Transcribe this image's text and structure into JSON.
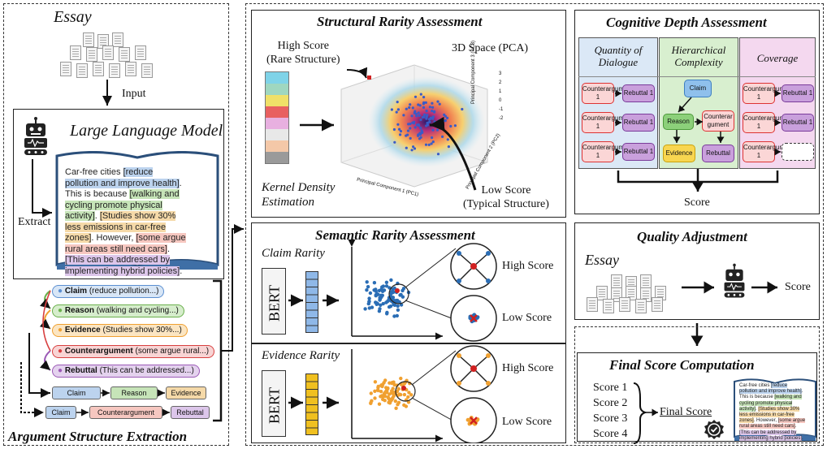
{
  "left": {
    "essay_label": "Essay",
    "input_label": "Input",
    "llm_title": "Large Language Model",
    "extract_label": "Extract",
    "book_text": {
      "t1": "Car-free cities ",
      "h1": "[reduce pollution and improve health]",
      "t2": ". This is because ",
      "h2": "[walking and cycling promote physical activity]",
      "t3": ". ",
      "h3": "[Studies show 30% less emissions in car-free zones]",
      "t4": ". However, ",
      "h4": "[some argue rural areas still need cars]",
      "t5": ". ",
      "h5": "[This can be addressed by implementing hybrid policies]",
      "t6": "."
    },
    "components": [
      {
        "key": "Claim",
        "rest": " (reduce pollution...)"
      },
      {
        "key": "Reason",
        "rest": " (walking and cycling...)"
      },
      {
        "key": "Evidence",
        "rest": " (Studies show 30%...)"
      },
      {
        "key": "Counterargument",
        "rest": " (some argue rural...)"
      },
      {
        "key": "Rebuttal",
        "rest": " (This can be addressed...)"
      }
    ],
    "chain1": [
      "Claim",
      "Reason",
      "Evidence"
    ],
    "chain2": [
      "Claim",
      "Counterargument",
      "Rebuttal"
    ],
    "section_title": "Argument Structure Extraction"
  },
  "structural": {
    "title": "Structural Rarity Assessment",
    "high_score": "High Score",
    "high_sub": "(Rare Structure)",
    "space_label": "3D Space (PCA)",
    "kde_line1": "Kernel Density",
    "kde_line2": "Estimation",
    "low_score": "Low Score",
    "low_sub": "(Typical Structure)",
    "pc1": "Principal Component 1 (PC1)",
    "pc2": "Principal Component 2 (PC2)",
    "pc3": "Principal Component 3 (PC3)",
    "z_ticks": [
      "3",
      "2",
      "1",
      "0",
      "-1",
      "-2"
    ],
    "x_ticks": [
      "-0.3",
      "-0.2",
      "-0.1",
      "0.0",
      "0.1",
      "0.2",
      "0.3"
    ],
    "y_ticks": [
      "0.4",
      "0.3",
      "0.2",
      "0.1",
      "0.0",
      "-0.1",
      "-0.2",
      "-0.3"
    ]
  },
  "semantic": {
    "title": "Semantic Rarity Assessment",
    "claim_label": "Claim Rarity",
    "evidence_label": "Evidence Rarity",
    "bert": "BERT",
    "high": "High Score",
    "low": "Low Score"
  },
  "cognitive": {
    "title": "Cognitive Depth Assessment",
    "col1": "Quantity of Dialogue",
    "col2": "Hierarchical Complexity",
    "col3": "Coverage",
    "ca_text": "Counterargument 1",
    "rb_text": "Rebuttal 1",
    "claim": "Claim",
    "reason": "Reason",
    "counter": "Counterargument",
    "evidence": "Evidence",
    "rebuttal": "Rebuttal",
    "score": "Score"
  },
  "quality": {
    "title": "Quality Adjustment",
    "essay": "Essay",
    "score": "Score"
  },
  "final": {
    "title": "Final Score Computation",
    "scores": [
      "Score 1",
      "Score 2",
      "Score 3",
      "Score 4"
    ],
    "final_label": "Final Score"
  },
  "colors": {
    "claim": "#5b8fd1",
    "reason": "#6ab04c",
    "evidence": "#f0a030",
    "counter": "#d84040",
    "rebuttal": "#9b59b6",
    "col_blue": "#dbe8f6",
    "col_green": "#d8efcf",
    "col_pink": "#f4d8ef"
  }
}
